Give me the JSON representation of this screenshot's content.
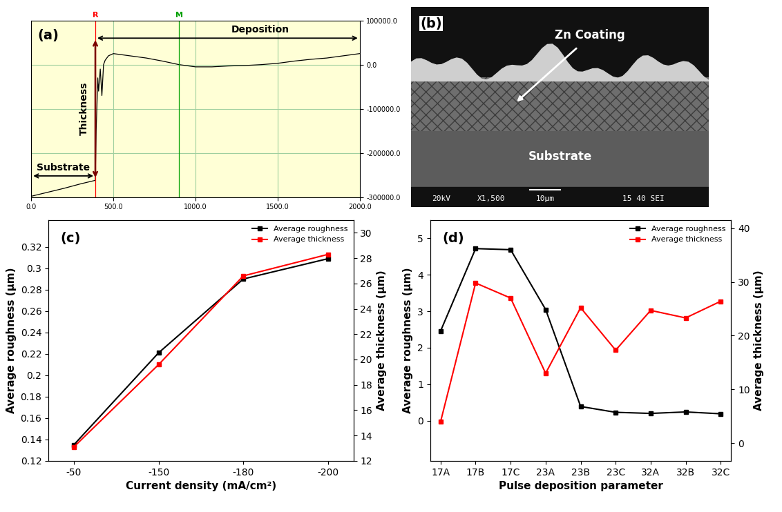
{
  "chart_data": [
    {
      "label": "(a)",
      "type": "line",
      "x": [
        0,
        100,
        200,
        300,
        390,
        395,
        405,
        410,
        420,
        430,
        440,
        450,
        470,
        500,
        600,
        700,
        800,
        900,
        1000,
        1100,
        1200,
        1300,
        1400,
        1500,
        1600,
        1700,
        1800,
        1900,
        2000
      ],
      "values": [
        -298000,
        -289000,
        -280000,
        -270000,
        -262000,
        -150000,
        -30000,
        -60000,
        -10000,
        -70000,
        0,
        10000,
        20000,
        25000,
        20000,
        15000,
        8000,
        0,
        -5000,
        -5000,
        -3000,
        -2000,
        0,
        3000,
        8000,
        12000,
        15000,
        20000,
        25000
      ],
      "color": "#000000",
      "xlim": [
        0,
        2000
      ],
      "xticks": [
        {
          "value": 0,
          "label": "0.0"
        },
        {
          "value": 500,
          "label": "500.0"
        },
        {
          "value": 1000,
          "label": "1000.0"
        },
        {
          "value": 1500,
          "label": "1500.0"
        },
        {
          "value": 2000,
          "label": "2000.0"
        }
      ],
      "ylim": [
        -300000,
        100000
      ],
      "yticks": [
        {
          "value": 100000,
          "label": "100000.0"
        },
        {
          "value": 0,
          "label": "0.0"
        },
        {
          "value": -100000,
          "label": "-100000.0"
        },
        {
          "value": -200000,
          "label": "-200000.0"
        },
        {
          "value": -300000,
          "label": "-300000.0"
        }
      ],
      "grid": true,
      "annotations": [
        "Substrate",
        "Thickness",
        "Deposition"
      ],
      "cursors": [
        {
          "x": 390,
          "label": "R",
          "color": "#ff0000"
        },
        {
          "x": 900,
          "label": "M",
          "color": "#00a000"
        }
      ]
    },
    {
      "label": "(c)",
      "type": "line",
      "x_label": "Current density (mA/cm²)",
      "y_label": "Average roughness (μm)",
      "y2_label": "Average thickness (μm)",
      "categories": [
        "-50",
        "-150",
        "-180",
        "-200"
      ],
      "series": [
        {
          "name": "Average roughness",
          "color": "#000000",
          "marker": "square",
          "values": [
            0.135,
            0.221,
            0.29,
            0.309
          ]
        },
        {
          "name": "Average thickness",
          "color": "#ff0000",
          "marker": "square",
          "axis": "y2",
          "values": [
            13.1,
            19.6,
            26.6,
            28.3
          ]
        }
      ],
      "ylim": [
        0.12,
        0.345
      ],
      "yticks": [
        0.12,
        0.14,
        0.16,
        0.18,
        0.2,
        0.22,
        0.24,
        0.26,
        0.28,
        0.3,
        0.32
      ],
      "y2lim": [
        12,
        31
      ],
      "y2ticks": [
        12,
        14,
        16,
        18,
        20,
        22,
        24,
        26,
        28,
        30
      ],
      "legend": "upper right"
    },
    {
      "label": "(d)",
      "type": "line",
      "x_label": "Pulse deposition parameter",
      "y_label": "Average roughness (μm)",
      "y2_label": "Average thickness (μm)",
      "categories": [
        "17A",
        "17B",
        "17C",
        "23A",
        "23B",
        "23C",
        "32A",
        "32B",
        "32C"
      ],
      "series": [
        {
          "name": "Average roughness",
          "color": "#000000",
          "marker": "square",
          "values": [
            2.46,
            4.72,
            4.69,
            3.05,
            0.39,
            0.23,
            0.2,
            0.24,
            0.19
          ]
        },
        {
          "name": "Average thickness",
          "color": "#ff0000",
          "marker": "square",
          "axis": "y2",
          "values": [
            4.0,
            29.8,
            27.0,
            13.0,
            25.2,
            17.3,
            24.7,
            23.3,
            26.4
          ]
        }
      ],
      "ylim": [
        -1.1,
        5.5
      ],
      "yticks": [
        0,
        1,
        2,
        3,
        4,
        5
      ],
      "y2lim": [
        -3.3,
        41.5
      ],
      "y2ticks": [
        0,
        10,
        20,
        30,
        40
      ],
      "legend": "upper right"
    }
  ],
  "image": {
    "label": "(b)",
    "labels": [
      "Zn Coating",
      "Substrate"
    ],
    "footer": [
      "20kV",
      "X1,500",
      "10μm",
      "15 40 SEI"
    ]
  }
}
